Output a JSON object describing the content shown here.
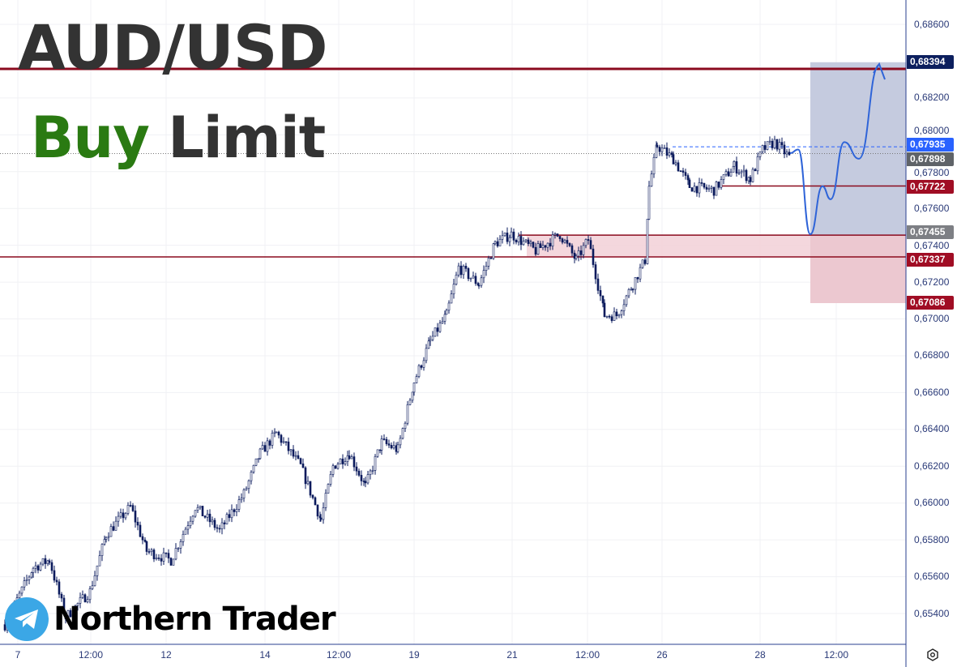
{
  "header": {
    "pair": "AUD/USD",
    "order_word_1": "Buy",
    "order_word_2": "Limit"
  },
  "brand": {
    "name": "Northern Trader",
    "icon": "telegram-icon"
  },
  "colors": {
    "candle": "#0a1a5c",
    "level": "#8b0a1e",
    "target_zone": "#c5cbdf",
    "stop_zone": "#ecc8d0",
    "projection": "#2f64d8",
    "buy_text": "#2a7a12"
  },
  "chart_data": {
    "type": "candlestick",
    "symbol": "AUD/USD",
    "y_ticks": [
      "0,68600",
      "0,68200",
      "0,68000",
      "0,67800",
      "0,67600",
      "0,67400",
      "0,67200",
      "0,67000",
      "0,66800",
      "0,66600",
      "0,66400",
      "0,66200",
      "0,66000",
      "0,65800",
      "0,65600",
      "0,65400"
    ],
    "x_ticks": [
      "7",
      "12:00",
      "12",
      "14",
      "12:00",
      "19",
      "21",
      "12:00",
      "26",
      "28",
      "12:00"
    ],
    "ylim": [
      0.6525,
      0.6873
    ],
    "closes": [
      0.6534,
      0.6565,
      0.6569,
      0.6538,
      0.6552,
      0.6583,
      0.6598,
      0.6574,
      0.6569,
      0.6598,
      0.6585,
      0.6605,
      0.6627,
      0.6638,
      0.662,
      0.6591,
      0.662,
      0.6627,
      0.6609,
      0.6633,
      0.6629,
      0.6666,
      0.6688,
      0.6702,
      0.6728,
      0.6719,
      0.6741,
      0.6746,
      0.6737,
      0.6746,
      0.6732,
      0.6743,
      0.6702,
      0.6702,
      0.6719,
      0.6732,
      0.6772,
      0.6794,
      0.6787,
      0.6772,
      0.677,
      0.6783,
      0.6776,
      0.6792,
      0.6796,
      0.6787
    ],
    "projection": [
      0.679,
      0.6792,
      0.6746,
      0.6772,
      0.6765,
      0.6796,
      0.6787,
      0.6838
    ],
    "levels": [
      {
        "price": 0.68394,
        "label": "0,68394",
        "color": "#0c1f5e"
      },
      {
        "price": 0.67935,
        "label": "0,67935",
        "color": "#2962ff"
      },
      {
        "price": 0.67898,
        "label": "0,67898",
        "color": "#5f6368"
      },
      {
        "price": 0.67722,
        "label": "0,67722",
        "color": "#a00d24"
      },
      {
        "price": 0.67455,
        "label": "0,67455",
        "color": "#7d7f84"
      },
      {
        "price": 0.67337,
        "label": "0,67337",
        "color": "#a00d24"
      },
      {
        "price": 0.67086,
        "label": "0,67086",
        "color": "#a00d24"
      }
    ],
    "position": {
      "type": "long",
      "entry": 0.67455,
      "target": 0.68394,
      "stop": 0.67086
    }
  }
}
